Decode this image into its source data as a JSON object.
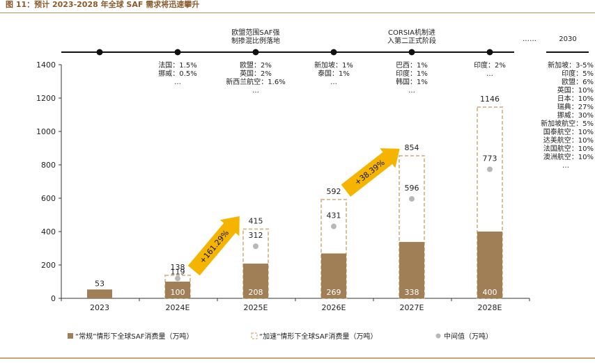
{
  "title": "图 11：预计 2023-2028 年全球 SAF 需求将迅速攀升",
  "timeline": {
    "events": [
      {
        "label_lines": []
      },
      {
        "label_lines": []
      },
      {
        "label_lines": [
          "欧盟范围SAF强",
          "制掺混比例落地"
        ]
      },
      {
        "label_lines": []
      },
      {
        "label_lines": [
          "CORSIA机制进",
          "入第二正式阶段"
        ]
      },
      {
        "label_lines": []
      }
    ],
    "ellipsis": "……",
    "year_2030": "2030"
  },
  "mandates": [
    {
      "lines": []
    },
    {
      "lines": [
        "法国：1.5%",
        "挪威：0.5%",
        "…"
      ]
    },
    {
      "lines": [
        "欧盟：2%",
        "英国：2%",
        "新西兰航空：1.6%",
        "…"
      ]
    },
    {
      "lines": [
        "新加坡：1%",
        "泰国：1%",
        "…"
      ]
    },
    {
      "lines": [
        "巴西：1%",
        "印度：1%",
        "韩国：1%",
        "…"
      ]
    },
    {
      "lines": [
        "印度：2%",
        "…"
      ]
    }
  ],
  "mandates_2030": [
    "新加坡：3-5%",
    "印度：5%",
    "欧盟：6%",
    "英国：10%",
    "日本：10%",
    "瑞典：27%",
    "挪威：30%",
    "新加坡航空：5%",
    "国泰航空：10%",
    "达美航空：10%",
    "法国航空：10%",
    "澳洲航空：10%",
    "…"
  ],
  "growth_labels": [
    "+161.29%",
    "+38.39%"
  ],
  "legend": {
    "normal": "“常规”情形下全球SAF消费量（万吨）",
    "accelerated": "“加速”情形下全球SAF消费量（万吨）",
    "median": "中间值（万吨）"
  },
  "colors": {
    "normal": "#a07f57",
    "accelerated": "#d9bf97",
    "median": "#b8b8b8",
    "arrow": "#f5b400",
    "title": "#8B5A2B"
  },
  "chart_data": {
    "type": "bar",
    "categories": [
      "2023",
      "2024E",
      "2025E",
      "2026E",
      "2027E",
      "2028E"
    ],
    "series": [
      {
        "name": "“常规”情形下全球SAF消费量（万吨）",
        "values": [
          53,
          100,
          208,
          269,
          338,
          400
        ]
      },
      {
        "name": "“加速”情形下全球SAF消费量（万吨）",
        "values": [
          53,
          138,
          415,
          592,
          854,
          1146
        ]
      },
      {
        "name": "中间值（万吨）",
        "values": [
          null,
          119,
          312,
          431,
          596,
          773
        ]
      }
    ],
    "yticks": [
      0,
      200,
      400,
      600,
      800,
      1000,
      1200,
      1400
    ],
    "ylim": [
      0,
      1400
    ],
    "legend_position": "bottom"
  }
}
